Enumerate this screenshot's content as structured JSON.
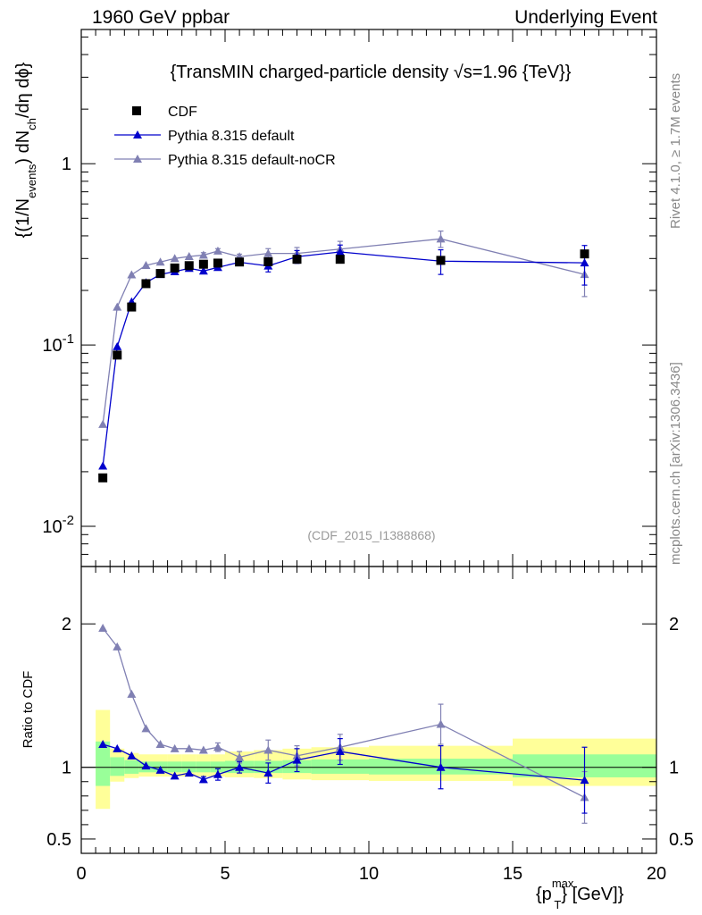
{
  "header": {
    "left": "1960 GeV ppbar",
    "right": "Underlying Event"
  },
  "side_labels": {
    "rivet": "Rivet 4.1.0, ≥ 1.7M events",
    "mcplots": "mcplots.cern.ch [arXiv:1306.3436]"
  },
  "chart_data": [
    {
      "type": "scatter",
      "panel": "main",
      "title": "{TransMIN charged-particle density √s=1.96 {TeV}}",
      "analysis_label": "(CDF_2015_I1388868)",
      "ylabel": "{(1/N_events) dN_ch/dη dϕ}",
      "yscale": "log",
      "ylim": [
        0.006,
        5.5
      ],
      "xlim": [
        0,
        20
      ],
      "x_ticks": [
        0,
        5,
        10,
        15,
        20
      ],
      "y_tick_labels": [
        "10^-2",
        "10^-1",
        "1"
      ],
      "legend_position": "top-left",
      "series": [
        {
          "name": "CDF",
          "color": "#000000",
          "marker": "square",
          "x": [
            0.75,
            1.25,
            1.75,
            2.25,
            2.75,
            3.25,
            3.75,
            4.25,
            4.75,
            5.5,
            6.5,
            7.5,
            9.0,
            12.5,
            17.5
          ],
          "values": [
            0.0185,
            0.088,
            0.162,
            0.218,
            0.248,
            0.266,
            0.274,
            0.279,
            0.283,
            0.287,
            0.288,
            0.297,
            0.297,
            0.293,
            0.318
          ]
        },
        {
          "name": "Pythia 8.315 default",
          "color": "#0000cc",
          "marker": "triangle",
          "x": [
            0.75,
            1.25,
            1.75,
            2.25,
            2.75,
            3.25,
            3.75,
            4.25,
            4.75,
            5.5,
            6.5,
            7.5,
            9.0,
            12.5,
            17.5
          ],
          "values": [
            0.0215,
            0.098,
            0.173,
            0.221,
            0.245,
            0.254,
            0.265,
            0.256,
            0.268,
            0.286,
            0.273,
            0.307,
            0.326,
            0.29,
            0.284
          ],
          "errors": [
            0,
            0,
            0,
            0,
            0,
            0,
            0,
            0,
            0,
            0,
            0.02,
            0.025,
            0.03,
            0.045,
            0.07
          ]
        },
        {
          "name": "Pythia 8.315 default-noCR",
          "color": "#8080b3",
          "marker": "triangle",
          "x": [
            0.75,
            1.25,
            1.75,
            2.25,
            2.75,
            3.25,
            3.75,
            4.25,
            4.75,
            5.5,
            6.5,
            7.5,
            9.0,
            12.5,
            17.5
          ],
          "values": [
            0.0365,
            0.162,
            0.244,
            0.275,
            0.287,
            0.3,
            0.308,
            0.313,
            0.33,
            0.307,
            0.32,
            0.32,
            0.338,
            0.385,
            0.245
          ],
          "errors": [
            0,
            0,
            0,
            0,
            0,
            0,
            0,
            0.01,
            0.01,
            0.01,
            0.02,
            0.025,
            0.035,
            0.04,
            0.06
          ]
        }
      ]
    },
    {
      "type": "scatter",
      "panel": "ratio",
      "ylabel": "Ratio to CDF",
      "xlabel": "{p_T^{max}} [GeV]",
      "ylim": [
        0.4,
        2.4
      ],
      "xlim": [
        0,
        20
      ],
      "x_ticks": [
        0,
        5,
        10,
        15,
        20
      ],
      "y_ticks": [
        0.5,
        1,
        2
      ],
      "reference_line": 1,
      "bands": {
        "edges": [
          0.5,
          1.0,
          1.5,
          2.0,
          2.5,
          3.0,
          3.5,
          4.0,
          4.5,
          5.0,
          6.0,
          7.0,
          8.0,
          10.0,
          15.0,
          20.0
        ],
        "inner": [
          [
            0.87,
            1.18
          ],
          [
            0.94,
            1.07
          ],
          [
            0.955,
            1.05
          ],
          [
            0.965,
            1.04
          ],
          [
            0.965,
            1.04
          ],
          [
            0.965,
            1.04
          ],
          [
            0.965,
            1.04
          ],
          [
            0.965,
            1.04
          ],
          [
            0.965,
            1.04
          ],
          [
            0.96,
            1.045
          ],
          [
            0.96,
            1.045
          ],
          [
            0.96,
            1.05
          ],
          [
            0.955,
            1.055
          ],
          [
            0.95,
            1.06
          ],
          [
            0.93,
            1.09
          ]
        ],
        "outer": [
          [
            0.71,
            1.4
          ],
          [
            0.9,
            1.13
          ],
          [
            0.925,
            1.1
          ],
          [
            0.935,
            1.09
          ],
          [
            0.935,
            1.09
          ],
          [
            0.935,
            1.09
          ],
          [
            0.935,
            1.09
          ],
          [
            0.935,
            1.09
          ],
          [
            0.935,
            1.09
          ],
          [
            0.93,
            1.11
          ],
          [
            0.925,
            1.12
          ],
          [
            0.915,
            1.13
          ],
          [
            0.91,
            1.14
          ],
          [
            0.905,
            1.15
          ],
          [
            0.87,
            1.2
          ]
        ],
        "inner_color": "#99ff99",
        "outer_color": "#ffff99"
      },
      "series": [
        {
          "name": "Pythia 8.315 default",
          "color": "#0000cc",
          "x": [
            0.75,
            1.25,
            1.75,
            2.25,
            2.75,
            3.25,
            3.75,
            4.25,
            4.75,
            5.5,
            6.5,
            7.5,
            9.0,
            12.5,
            17.5
          ],
          "values": [
            1.16,
            1.13,
            1.08,
            1.01,
            0.98,
            0.94,
            0.96,
            0.915,
            0.95,
            1.0,
            0.96,
            1.05,
            1.11,
            1.0,
            0.91
          ],
          "errors": [
            0,
            0,
            0,
            0,
            0,
            0,
            0,
            0.02,
            0.04,
            0.04,
            0.07,
            0.08,
            0.09,
            0.15,
            0.23
          ]
        },
        {
          "name": "Pythia 8.315 default-noCR",
          "color": "#8080b3",
          "x": [
            0.75,
            1.25,
            1.75,
            2.25,
            2.75,
            3.25,
            3.75,
            4.25,
            4.75,
            5.5,
            6.5,
            7.5,
            9.0,
            12.5,
            17.5
          ],
          "values": [
            1.97,
            1.84,
            1.51,
            1.27,
            1.16,
            1.13,
            1.13,
            1.12,
            1.14,
            1.07,
            1.12,
            1.08,
            1.14,
            1.3,
            0.79
          ],
          "errors": [
            0,
            0,
            0,
            0,
            0,
            0,
            0,
            0,
            0.03,
            0.04,
            0.07,
            0.07,
            0.09,
            0.14,
            0.18
          ]
        }
      ]
    }
  ]
}
